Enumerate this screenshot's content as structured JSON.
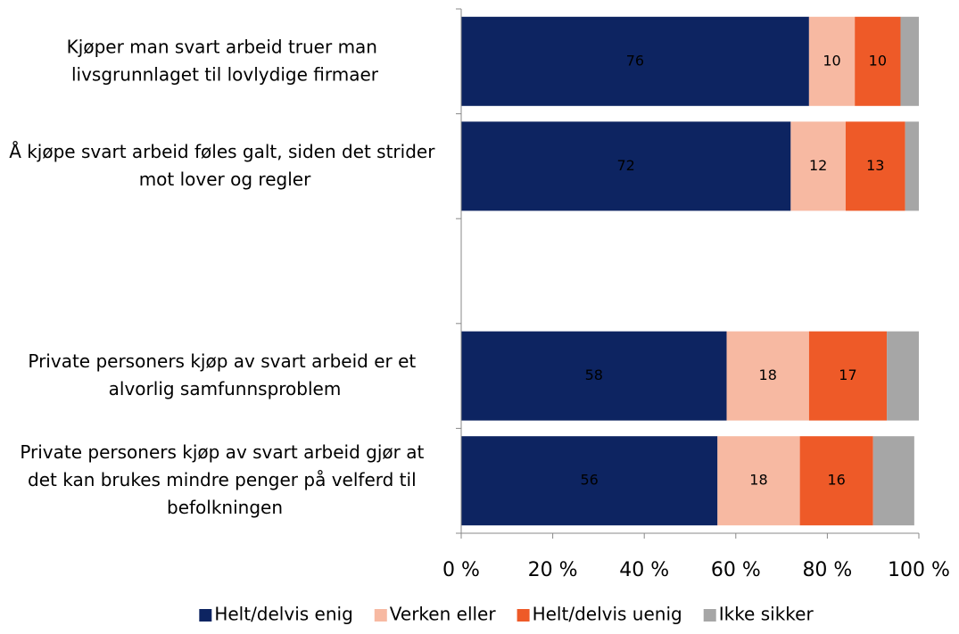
{
  "chart_data": {
    "type": "stacked_barh",
    "categories": [
      "Kjøper man svart arbeid truer man livsgrunnlaget til lovlydige firmaer",
      "Å kjøpe svart arbeid føles galt, siden det strider mot lover og regler",
      null,
      "Private personers kjøp av svart arbeid er et alvorlig samfunnsproblem",
      "Private personers kjøp av svart arbeid gjør at det kan brukes mindre penger på velferd til befolkningen"
    ],
    "series": [
      {
        "name": "Helt/delvis enig",
        "color": "#0d2461",
        "values": [
          76,
          72,
          null,
          58,
          56
        ],
        "data_labels": true
      },
      {
        "name": "Verken eller",
        "color": "#f7b9a2",
        "values": [
          10,
          12,
          null,
          18,
          18
        ],
        "data_labels": true
      },
      {
        "name": "Helt/delvis uenig",
        "color": "#ee5a28",
        "values": [
          10,
          13,
          null,
          17,
          16
        ],
        "data_labels": true
      },
      {
        "name": "Ikke sikker",
        "color": "#a6a6a6",
        "values": [
          4,
          3,
          null,
          7,
          9
        ],
        "data_labels": false
      }
    ],
    "xlim": [
      0,
      100
    ],
    "xticks": [
      {
        "value": 0,
        "label": "0 %"
      },
      {
        "value": 20,
        "label": "20 %"
      },
      {
        "value": 40,
        "label": "40 %"
      },
      {
        "value": 60,
        "label": "60 %"
      },
      {
        "value": 80,
        "label": "80 %"
      },
      {
        "value": 100,
        "label": "100 %"
      }
    ],
    "legend": "bottom"
  }
}
